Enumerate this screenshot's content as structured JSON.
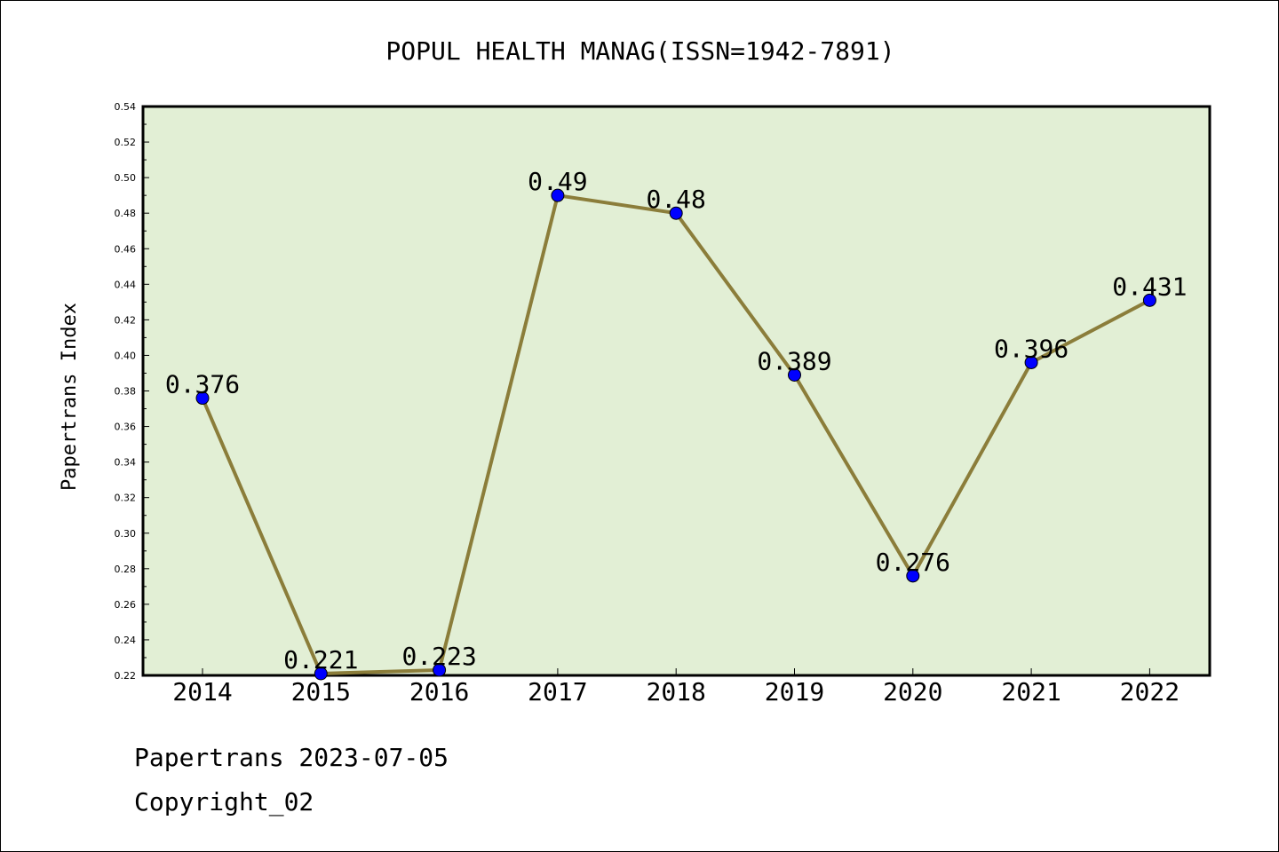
{
  "chart_data": {
    "type": "line",
    "title": "POPUL HEALTH MANAG(ISSN=1942-7891)",
    "xlabel": "",
    "ylabel": "Papertrans Index",
    "categories": [
      "2014",
      "2015",
      "2016",
      "2017",
      "2018",
      "2019",
      "2020",
      "2021",
      "2022"
    ],
    "series": [
      {
        "values": [
          0.376,
          0.221,
          0.223,
          0.49,
          0.48,
          0.389,
          0.276,
          0.396,
          0.431
        ],
        "labels": [
          "0.376",
          "0.221",
          "0.223",
          "0.49",
          "0.48",
          "0.389",
          "0.276",
          "0.396",
          "0.431"
        ],
        "line_color": "#8b7d3a",
        "marker_color": "#0000ff"
      }
    ],
    "ylim": [
      0.22,
      0.54
    ],
    "yticks": [
      "0.22",
      "0.24",
      "0.26",
      "0.28",
      "0.30",
      "0.32",
      "0.34",
      "0.36",
      "0.38",
      "0.40",
      "0.42",
      "0.44",
      "0.46",
      "0.48",
      "0.50",
      "0.52",
      "0.54"
    ],
    "plot_background": "#e2efd5",
    "grid": false,
    "legend": "none"
  },
  "footer": {
    "date_line": "Papertrans 2023-07-05",
    "copyright": "Copyright_02"
  }
}
